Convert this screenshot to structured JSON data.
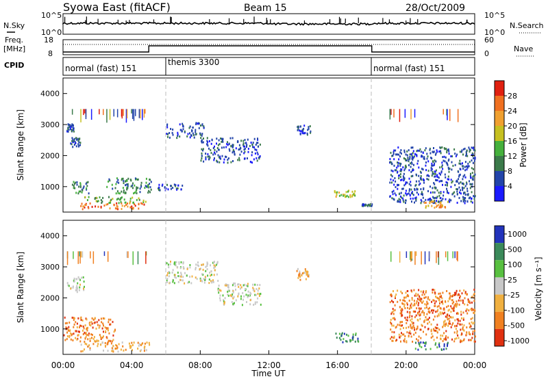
{
  "header": {
    "station": "Syowa East (fitACF)",
    "beam": "Beam 15",
    "date": "28/Oct/2009"
  },
  "top_panel": {
    "left_label": "N.Sky",
    "right_label": "N.Search",
    "y_ticks": [
      "10^5",
      "10^0"
    ],
    "right_ticks": [
      "10^5",
      "10^0"
    ]
  },
  "freq_panel": {
    "left_label_1": "Freq.",
    "left_label_2": "[MHz]",
    "left_ticks": [
      "18",
      "8"
    ],
    "right_label": "Nave",
    "right_ticks": [
      "60",
      "0"
    ]
  },
  "cpid": {
    "label": "CPID",
    "modes": [
      {
        "name": "normal (fast) 151",
        "start_hour": 0
      },
      {
        "name": "themis 3300",
        "start_hour": 6
      },
      {
        "name": "normal (fast) 151",
        "start_hour": 18
      }
    ]
  },
  "x_axis": {
    "label": "Time UT",
    "ticks": [
      "00:00",
      "04:00",
      "08:00",
      "12:00",
      "16:00",
      "20:00",
      "00:00"
    ]
  },
  "power_panel": {
    "ylabel": "Slant Range [km]",
    "y_ticks": [
      "4000",
      "3000",
      "2000",
      "1000"
    ],
    "colorbar_label": "Power [dB]",
    "colorbar_ticks": [
      "28",
      "24",
      "20",
      "16",
      "12",
      "8",
      "4"
    ],
    "colors": [
      "#1a1aff",
      "#2244aa",
      "#3b7a4a",
      "#45b03c",
      "#c6c020",
      "#f0a030",
      "#f07020",
      "#e02010"
    ]
  },
  "velocity_panel": {
    "ylabel": "Slant Range [km]",
    "y_ticks": [
      "4000",
      "3000",
      "2000",
      "1000"
    ],
    "colorbar_label": "Velocity [m s⁻¹]",
    "colorbar_ticks": [
      "1000",
      "500",
      "100",
      "25",
      "-25",
      "-100",
      "-500",
      "-1000"
    ],
    "colors": [
      "#2233bb",
      "#3b8a5a",
      "#58c040",
      "#c8c8c8",
      "#f0b040",
      "#f08020",
      "#e03010"
    ]
  },
  "chart_data": {
    "type": "heatmap",
    "x_range_hours": [
      0,
      24
    ],
    "y_range_km": [
      180,
      4500
    ],
    "power_clusters": [
      {
        "t": 0.5,
        "t2": 1.5,
        "r": 800,
        "r2": 1200,
        "level": 2
      },
      {
        "t": 0.4,
        "t2": 1.0,
        "r": 2300,
        "r2": 2600,
        "level": 1
      },
      {
        "t": 0.2,
        "t2": 0.6,
        "r": 2800,
        "r2": 3100,
        "level": 1
      },
      {
        "t": 1.0,
        "t2": 5.0,
        "r": 300,
        "r2": 500,
        "level": 6
      },
      {
        "t": 1.2,
        "t2": 4.8,
        "r": 500,
        "r2": 700,
        "level": 3
      },
      {
        "t": 2.5,
        "t2": 5.2,
        "r": 800,
        "r2": 1300,
        "level": 2
      },
      {
        "t": 5.5,
        "t2": 7.0,
        "r": 900,
        "r2": 1100,
        "level": 1
      },
      {
        "t": 6.0,
        "t2": 8.2,
        "r": 2600,
        "r2": 3100,
        "level": 1
      },
      {
        "t": 8.0,
        "t2": 11.5,
        "r": 1800,
        "r2": 2600,
        "level": 1
      },
      {
        "t": 13.6,
        "t2": 14.4,
        "r": 2700,
        "r2": 3000,
        "level": 1
      },
      {
        "t": 15.8,
        "t2": 17.0,
        "r": 700,
        "r2": 900,
        "level": 4
      },
      {
        "t": 17.4,
        "t2": 18.0,
        "r": 400,
        "r2": 470,
        "level": 1
      },
      {
        "t": 19.0,
        "t2": 24.0,
        "r": 500,
        "r2": 2300,
        "level": 1
      },
      {
        "t": 21.0,
        "t2": 22.5,
        "r": 350,
        "r2": 550,
        "level": 5
      }
    ],
    "velocity_clusters": [
      {
        "t": 0.0,
        "t2": 3.0,
        "r": 600,
        "r2": 1400,
        "level": 5
      },
      {
        "t": 1.0,
        "t2": 5.0,
        "r": 300,
        "r2": 600,
        "level": 4
      },
      {
        "t": 0.2,
        "t2": 1.2,
        "r": 2200,
        "r2": 2700,
        "level": 3
      },
      {
        "t": 6.0,
        "t2": 9.0,
        "r": 2500,
        "r2": 3200,
        "level": 3
      },
      {
        "t": 9.0,
        "t2": 11.5,
        "r": 1800,
        "r2": 2500,
        "level": 3
      },
      {
        "t": 13.6,
        "t2": 14.3,
        "r": 2600,
        "r2": 3000,
        "level": 4
      },
      {
        "t": 15.8,
        "t2": 17.2,
        "r": 600,
        "r2": 900,
        "level": 1
      },
      {
        "t": 20.5,
        "t2": 22.5,
        "r": 350,
        "r2": 600,
        "level": 1
      },
      {
        "t": 19.0,
        "t2": 24.0,
        "r": 600,
        "r2": 2300,
        "level": 5
      }
    ]
  }
}
